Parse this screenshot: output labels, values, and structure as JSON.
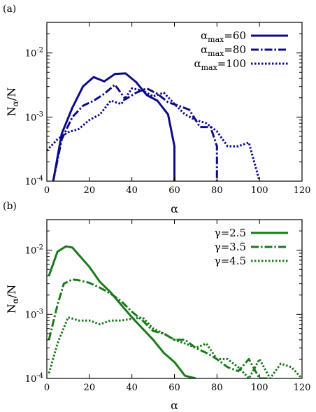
{
  "chart_data": [
    {
      "type": "line",
      "panel_label": "(a)",
      "xlabel": "α",
      "ylabel": "Nα/N",
      "ylabel_main": "N",
      "ylabel_sub": "α",
      "ylabel_tail": "/N",
      "y_scale": "log",
      "xlim": [
        0,
        120
      ],
      "ylim": [
        0.0001,
        0.03
      ],
      "x_ticks": [
        0,
        20,
        40,
        60,
        80,
        100,
        120
      ],
      "x_tick_labels": [
        "0",
        "20",
        "40",
        "60",
        "80",
        "100",
        "120"
      ],
      "y_ticks": [
        0.0001,
        0.001,
        0.01
      ],
      "y_tick_labels": [
        {
          "base": "10",
          "exp": "-4"
        },
        {
          "base": "10",
          "exp": "-3"
        },
        {
          "base": "10",
          "exp": "-2"
        }
      ],
      "grid": false,
      "legend_position": "top-right",
      "series": [
        {
          "name": "αmax=60",
          "legend_main": "α",
          "legend_sub": "max",
          "legend_tail": "=60",
          "color": "#0c0c8a",
          "dash": "solid",
          "x": [
            3,
            7,
            12,
            17,
            22,
            27,
            32,
            37,
            42,
            47,
            52,
            57,
            60,
            60
          ],
          "y": [
            0.0001,
            0.00055,
            0.0014,
            0.003,
            0.0042,
            0.0036,
            0.0047,
            0.0048,
            0.0035,
            0.0022,
            0.0018,
            0.0011,
            0.00035,
            0.0001
          ]
        },
        {
          "name": "αmax=80",
          "legend_main": "α",
          "legend_sub": "max",
          "legend_tail": "=80",
          "color": "#0c0c8a",
          "dash": "dashdot",
          "x": [
            3,
            7,
            12,
            17,
            22,
            27,
            32,
            37,
            42,
            47,
            52,
            57,
            62,
            67,
            72,
            77,
            80,
            80
          ],
          "y": [
            0.0001,
            0.00045,
            0.001,
            0.0015,
            0.0018,
            0.0023,
            0.0032,
            0.0019,
            0.0024,
            0.0028,
            0.0023,
            0.0017,
            0.0015,
            0.0013,
            0.0007,
            0.0007,
            0.00035,
            0.0001
          ]
        },
        {
          "name": "αmax=100",
          "legend_main": "α",
          "legend_sub": "max",
          "legend_tail": "=100",
          "color": "#0c0c8a",
          "dash": "dotted",
          "x": [
            0,
            5,
            10,
            15,
            20,
            25,
            30,
            35,
            40,
            45,
            50,
            55,
            60,
            65,
            70,
            75,
            80,
            85,
            90,
            95,
            100
          ],
          "y": [
            0.0003,
            0.00045,
            0.00058,
            0.00065,
            0.0009,
            0.0011,
            0.0018,
            0.0016,
            0.0028,
            0.0026,
            0.0021,
            0.0024,
            0.0016,
            0.0011,
            0.0009,
            0.0008,
            0.0006,
            0.00035,
            0.00035,
            0.0004,
            0.0001
          ]
        }
      ]
    },
    {
      "type": "line",
      "panel_label": "(b)",
      "xlabel": "α",
      "ylabel": "Nα/N",
      "ylabel_main": "N",
      "ylabel_sub": "α",
      "ylabel_tail": "/N",
      "y_scale": "log",
      "xlim": [
        0,
        120
      ],
      "ylim": [
        0.0001,
        0.03
      ],
      "x_ticks": [
        0,
        20,
        40,
        60,
        80,
        100,
        120
      ],
      "x_tick_labels": [
        "0",
        "20",
        "40",
        "60",
        "80",
        "100",
        "120"
      ],
      "y_ticks": [
        0.0001,
        0.001,
        0.01
      ],
      "y_tick_labels": [
        {
          "base": "10",
          "exp": "-4"
        },
        {
          "base": "10",
          "exp": "-3"
        },
        {
          "base": "10",
          "exp": "-2"
        }
      ],
      "grid": false,
      "legend_position": "top-right",
      "series": [
        {
          "name": "γ=2.5",
          "legend_main": "γ=2.5",
          "legend_sub": "",
          "legend_tail": "",
          "color": "#1a7a1a",
          "dash": "solid",
          "x": [
            1,
            5,
            9,
            12,
            15,
            20,
            25,
            30,
            35,
            40,
            45,
            50,
            55,
            60,
            65,
            70
          ],
          "y": [
            0.004,
            0.0095,
            0.0115,
            0.011,
            0.0085,
            0.0055,
            0.0032,
            0.0022,
            0.0014,
            0.0009,
            0.0006,
            0.0004,
            0.00025,
            0.00018,
            0.00011,
            0.0001
          ]
        },
        {
          "name": "γ=3.5",
          "legend_main": "γ=3.5",
          "legend_sub": "",
          "legend_tail": "",
          "color": "#1a7a1a",
          "dash": "dashdot",
          "x": [
            1,
            5,
            8,
            12,
            15,
            20,
            25,
            30,
            35,
            40,
            45,
            50,
            55,
            60,
            65,
            70,
            75,
            80,
            85,
            90,
            95,
            100,
            105
          ],
          "y": [
            0.0004,
            0.0014,
            0.003,
            0.0035,
            0.0034,
            0.0031,
            0.0026,
            0.0021,
            0.0016,
            0.0011,
            0.0008,
            0.00055,
            0.0005,
            0.0004,
            0.0004,
            0.0003,
            0.00025,
            0.0002,
            0.00015,
            0.00013,
            0.0002,
            0.0001,
            0.0001
          ]
        },
        {
          "name": "γ=4.5",
          "legend_main": "γ=4.5",
          "legend_sub": "",
          "legend_tail": "",
          "color": "#1a7a1a",
          "dash": "dotted",
          "x": [
            1,
            5,
            10,
            15,
            20,
            25,
            30,
            35,
            40,
            45,
            50,
            55,
            60,
            65,
            70,
            75,
            80,
            85,
            90,
            95,
            100,
            105,
            110,
            115,
            120
          ],
          "y": [
            0.00012,
            0.00035,
            0.0009,
            0.0008,
            0.0008,
            0.0007,
            0.0008,
            0.0008,
            0.00085,
            0.0009,
            0.0006,
            0.0005,
            0.0004,
            0.00035,
            0.0003,
            0.00035,
            0.0002,
            0.0002,
            0.00015,
            0.0001,
            0.0002,
            0.0001,
            0.00017,
            0.00015,
            0.0001
          ]
        }
      ]
    }
  ]
}
